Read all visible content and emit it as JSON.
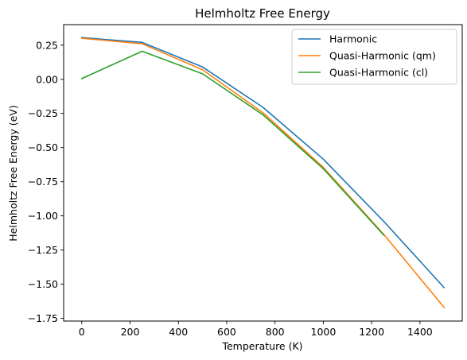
{
  "chart_data": {
    "type": "line",
    "title": "Helmholtz Free Energy",
    "xlabel": "Temperature (K)",
    "ylabel": "Helmholtz Free Energy (eV)",
    "xlim": [
      -75,
      1575
    ],
    "ylim": [
      -1.77,
      0.4
    ],
    "xticks": [
      0,
      200,
      400,
      600,
      800,
      1000,
      1200,
      1400
    ],
    "xtick_labels": [
      "0",
      "200",
      "400",
      "600",
      "800",
      "1000",
      "1200",
      "1400"
    ],
    "yticks": [
      0.25,
      0.0,
      -0.25,
      -0.5,
      -0.75,
      -1.0,
      -1.25,
      -1.5,
      -1.75
    ],
    "ytick_labels": [
      "0.25",
      "0.00",
      "−0.25",
      "−0.50",
      "−0.75",
      "−1.00",
      "−1.25",
      "−1.50",
      "−1.75"
    ],
    "grid": false,
    "legend_position": "top-right",
    "series": [
      {
        "name": "Harmonic",
        "color": "#1f77b4",
        "x": [
          0,
          250,
          500,
          750,
          1000,
          1250,
          1500
        ],
        "y": [
          0.305,
          0.27,
          0.09,
          -0.205,
          -0.585,
          -1.04,
          -1.525
        ]
      },
      {
        "name": "Quasi-Harmonic (qm)",
        "color": "#ff7f0e",
        "x": [
          0,
          250,
          500,
          750,
          1000,
          1250,
          1500
        ],
        "y": [
          0.3,
          0.26,
          0.07,
          -0.245,
          -0.645,
          -1.135,
          -1.67
        ]
      },
      {
        "name": "Quasi-Harmonic (cl)",
        "color": "#2ca02c",
        "x": [
          0,
          250,
          500,
          750,
          1000,
          1250
        ],
        "y": [
          0.005,
          0.205,
          0.04,
          -0.26,
          -0.655,
          -1.14
        ]
      }
    ]
  }
}
